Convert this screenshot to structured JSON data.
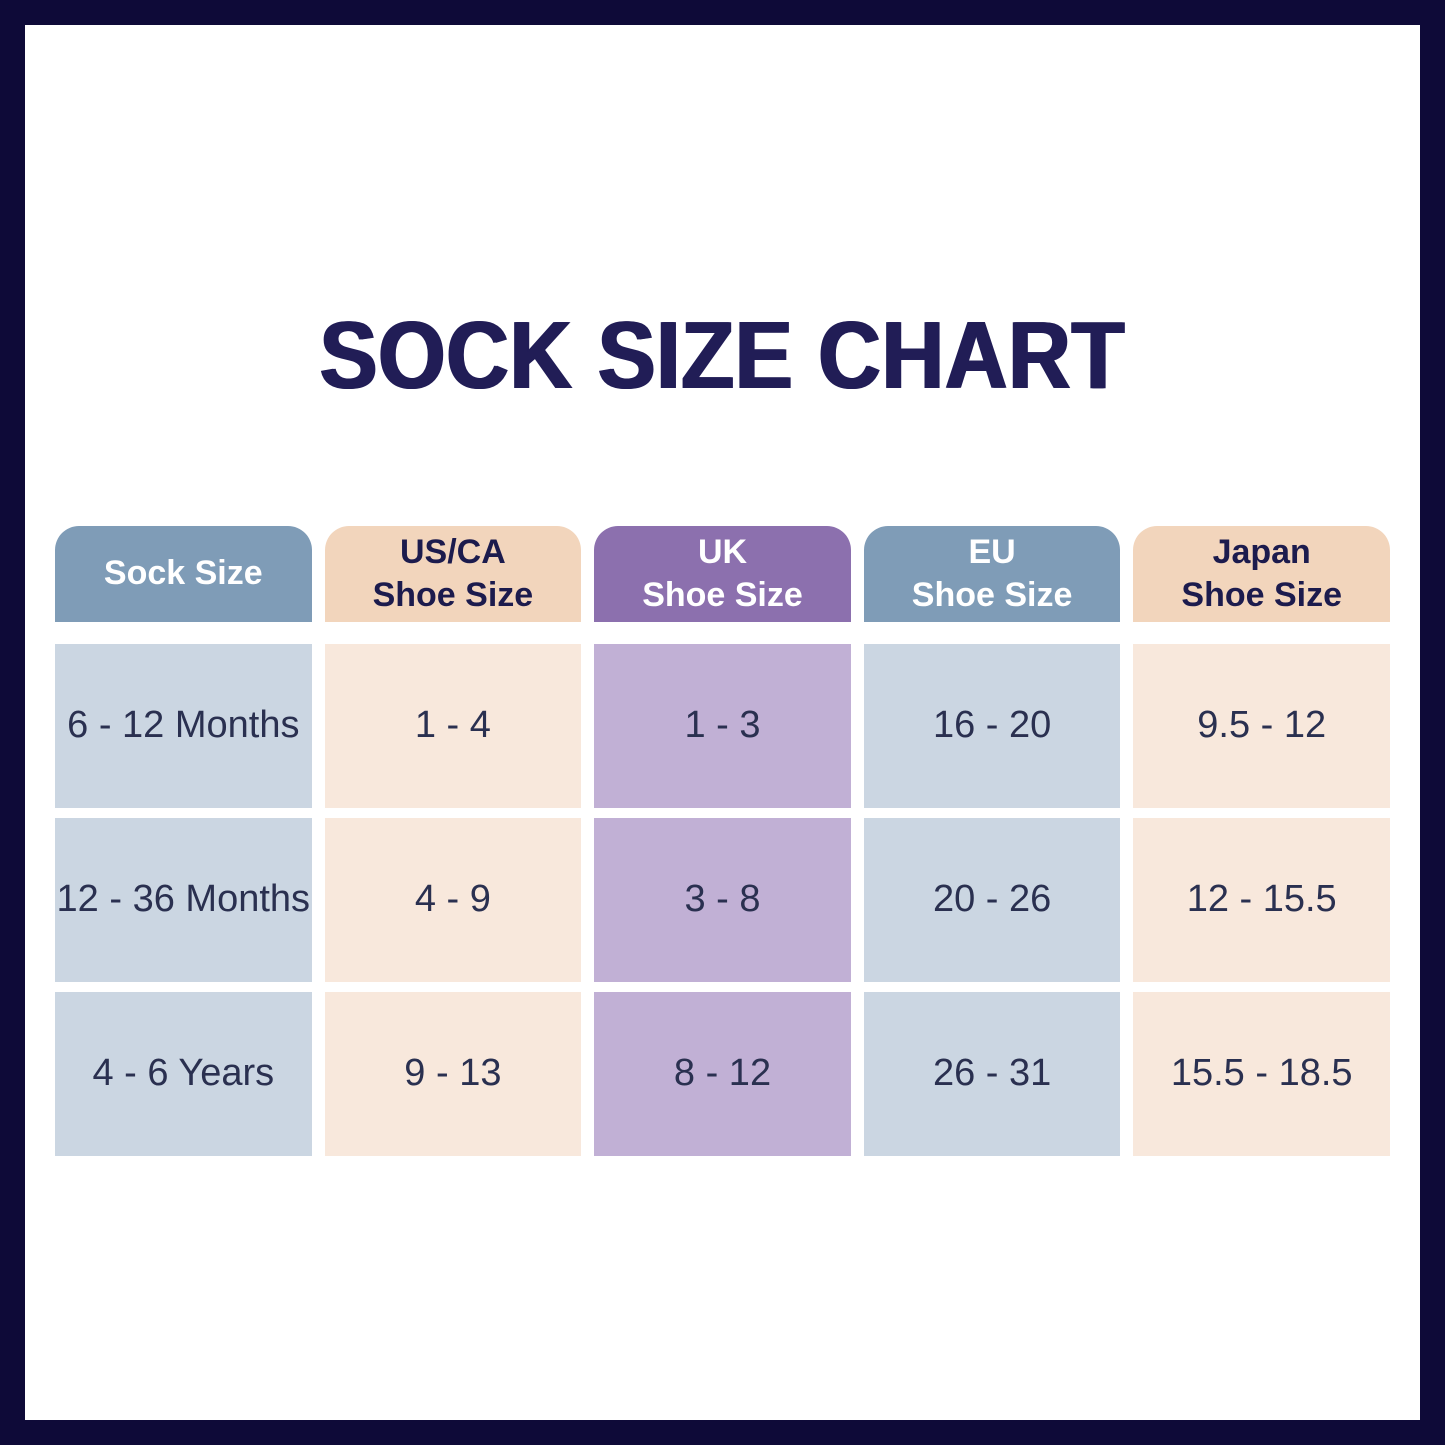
{
  "title": "SOCK SIZE CHART",
  "colors": {
    "frame": "#0e0a38",
    "title_text": "#211d56",
    "cell_text": "#2a3050",
    "header_blue_bg": "#7f9cb7",
    "header_peach_bg": "#f2d5bc",
    "header_purple_bg": "#8c70ae",
    "header_light_text": "#ffffff",
    "header_dark_text": "#1c1b4d",
    "cell_blue_bg": "#cbd6e2",
    "cell_peach_bg": "#f8e8dc",
    "cell_purple_bg": "#c1b0d5"
  },
  "table": {
    "columns": [
      {
        "id": "sock-size",
        "lines": [
          "Sock Size"
        ],
        "theme": "blue"
      },
      {
        "id": "us-ca-shoe-size",
        "lines": [
          "US/CA",
          "Shoe Size"
        ],
        "theme": "peach"
      },
      {
        "id": "uk-shoe-size",
        "lines": [
          "UK",
          "Shoe Size"
        ],
        "theme": "purple"
      },
      {
        "id": "eu-shoe-size",
        "lines": [
          "EU",
          "Shoe Size"
        ],
        "theme": "blue"
      },
      {
        "id": "japan-shoe-size",
        "lines": [
          "Japan",
          "Shoe Size"
        ],
        "theme": "peach"
      }
    ],
    "rows": [
      [
        "6 - 12 Months",
        "1 - 4",
        "1 - 3",
        "16 - 20",
        "9.5 - 12"
      ],
      [
        "12 - 36 Months",
        "4 - 9",
        "3 - 8",
        "20 - 26",
        "12 - 15.5"
      ],
      [
        "4 - 6 Years",
        "9 - 13",
        "8 - 12",
        "26 - 31",
        "15.5 - 18.5"
      ]
    ]
  },
  "chart_data": {
    "type": "table",
    "title": "SOCK SIZE CHART",
    "columns": [
      "Sock Size",
      "US/CA Shoe Size",
      "UK Shoe Size",
      "EU Shoe Size",
      "Japan Shoe Size"
    ],
    "rows": [
      [
        "6 - 12 Months",
        "1 - 4",
        "1 - 3",
        "16 - 20",
        "9.5 - 12"
      ],
      [
        "12 - 36 Months",
        "4 - 9",
        "3 - 8",
        "20 - 26",
        "12 - 15.5"
      ],
      [
        "4 - 6 Years",
        "9 - 13",
        "8 - 12",
        "26 - 31",
        "15.5 - 18.5"
      ]
    ]
  }
}
